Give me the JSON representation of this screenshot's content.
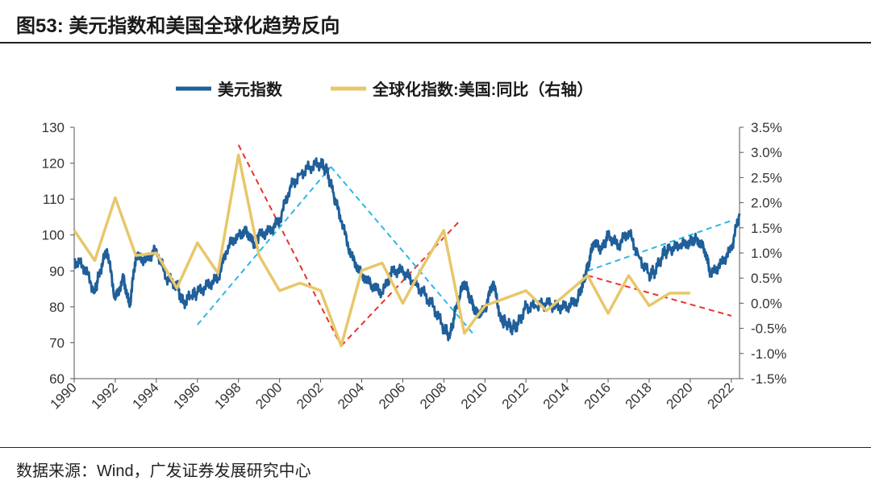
{
  "header": {
    "figure_label": "图53:",
    "title": "美元指数和美国全球化趋势反向"
  },
  "source": "数据来源：Wind，广发证券发展研究中心",
  "chart_data": {
    "type": "line",
    "title": "美元指数和美国全球化趋势反向",
    "legend": [
      "美元指数",
      "全球化指数:美国:同比（右轴）"
    ],
    "legend_position": "top-center",
    "x_ticks": [
      "1990",
      "1992",
      "1994",
      "1996",
      "1998",
      "2000",
      "2002",
      "2004",
      "2006",
      "2008",
      "2010",
      "2012",
      "2014",
      "2016",
      "2018",
      "2020",
      "2022"
    ],
    "x_range": [
      1990,
      2022.4
    ],
    "left_axis": {
      "ylim": [
        60,
        130
      ],
      "ticks": [
        "60",
        "70",
        "80",
        "90",
        "100",
        "110",
        "120",
        "130"
      ]
    },
    "right_axis": {
      "ylim": [
        -1.5,
        3.5
      ],
      "ticks": [
        "-1.5%",
        "-1.0%",
        "-0.5%",
        "0.0%",
        "0.5%",
        "1.0%",
        "1.5%",
        "2.0%",
        "2.5%",
        "3.0%",
        "3.5%"
      ]
    },
    "series": [
      {
        "name": "美元指数",
        "axis": "left",
        "color": "#1f5f9a",
        "x": [
          1990.0,
          1990.5,
          1991.0,
          1991.2,
          1991.6,
          1992.0,
          1992.4,
          1992.7,
          1993.0,
          1993.5,
          1994.0,
          1994.5,
          1995.0,
          1995.3,
          1995.7,
          1996.0,
          1996.5,
          1997.0,
          1997.5,
          1998.0,
          1998.4,
          1998.8,
          1999.0,
          1999.5,
          2000.0,
          2000.5,
          2001.0,
          2001.5,
          2002.0,
          2002.3,
          2002.6,
          2003.0,
          2003.5,
          2004.0,
          2004.5,
          2005.0,
          2005.5,
          2006.0,
          2006.5,
          2007.0,
          2007.5,
          2008.0,
          2008.3,
          2008.6,
          2009.0,
          2009.3,
          2009.6,
          2010.0,
          2010.4,
          2010.8,
          2011.0,
          2011.3,
          2011.6,
          2012.0,
          2012.5,
          2013.0,
          2013.5,
          2014.0,
          2014.5,
          2014.8,
          2015.0,
          2015.3,
          2015.7,
          2016.0,
          2016.5,
          2017.0,
          2017.5,
          2018.0,
          2018.3,
          2018.7,
          2019.0,
          2019.5,
          2020.0,
          2020.3,
          2020.7,
          2021.0,
          2021.5,
          2022.0,
          2022.4
        ],
        "values": [
          93,
          91,
          84,
          89,
          96,
          82,
          88,
          80,
          94,
          93,
          96,
          88,
          86,
          81,
          83,
          84,
          86,
          88,
          97,
          100,
          101,
          97,
          100,
          101,
          104,
          113,
          117,
          119,
          120,
          118,
          112,
          104,
          94,
          89,
          86,
          84,
          90,
          90,
          87,
          84,
          80,
          74,
          72,
          80,
          87,
          82,
          78,
          79,
          87,
          76,
          76,
          74,
          75,
          80,
          80,
          81,
          80,
          80,
          82,
          87,
          91,
          98,
          96,
          100,
          97,
          101,
          94,
          89,
          90,
          95,
          96,
          97,
          98,
          99,
          96,
          89,
          92,
          96,
          106
        ]
      },
      {
        "name": "全球化指数:美国:同比（右轴）",
        "axis": "right",
        "color": "#e8c76a",
        "x": [
          1990,
          1991,
          1992,
          1993,
          1994,
          1995,
          1996,
          1997,
          1998,
          1999,
          2000,
          2001,
          2002,
          2003,
          2004,
          2005,
          2006,
          2007,
          2008,
          2009,
          2010,
          2011,
          2012,
          2013,
          2014,
          2015,
          2016,
          2017,
          2018,
          2019,
          2020
        ],
        "values": [
          1.45,
          0.85,
          2.1,
          0.95,
          1.0,
          0.3,
          1.2,
          0.6,
          2.95,
          0.95,
          0.25,
          0.4,
          0.25,
          -0.85,
          0.65,
          0.8,
          0.0,
          0.75,
          1.45,
          -0.6,
          -0.05,
          0.1,
          0.25,
          -0.15,
          0.2,
          0.55,
          -0.2,
          0.55,
          -0.05,
          0.2,
          0.2
        ]
      }
    ],
    "trend_lines": [
      {
        "color": "red",
        "axis": "right",
        "x": [
          1998.0,
          2003.0
        ],
        "values": [
          3.15,
          -0.85
        ]
      },
      {
        "color": "red",
        "axis": "right",
        "x": [
          2003.0,
          2008.8
        ],
        "values": [
          -0.85,
          1.65
        ]
      },
      {
        "color": "red",
        "axis": "right",
        "x": [
          2015.0,
          2022.0
        ],
        "values": [
          0.55,
          -0.25
        ]
      },
      {
        "color": "blue",
        "axis": "left",
        "x": [
          1996.0,
          2002.5
        ],
        "values": [
          75,
          119
        ]
      },
      {
        "color": "blue",
        "axis": "left",
        "x": [
          2002.5,
          2009.5
        ],
        "values": [
          119,
          72
        ]
      },
      {
        "color": "blue",
        "axis": "left",
        "x": [
          2015.0,
          2022.0
        ],
        "values": [
          90,
          104
        ]
      }
    ]
  }
}
